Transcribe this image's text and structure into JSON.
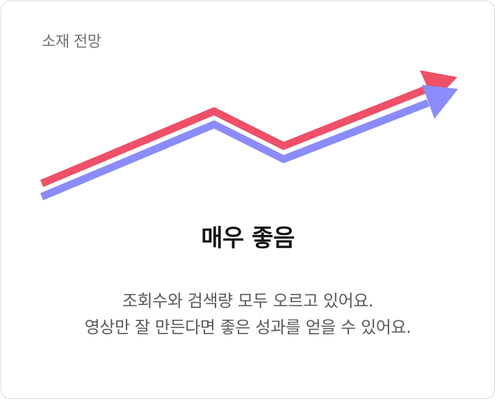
{
  "card": {
    "label": "소재 전망",
    "rating": "매우 좋음",
    "description_lines": [
      "조회수와 검색량 모두 오르고 있어요.",
      "영상만 잘 만든다면 좋은 성과를 얻을 수 있어요."
    ]
  },
  "graphic": {
    "icon": "rising-trend-arrows-icon",
    "series_colors": {
      "upper": "#ee5068",
      "lower": "#8a8cfb"
    }
  }
}
